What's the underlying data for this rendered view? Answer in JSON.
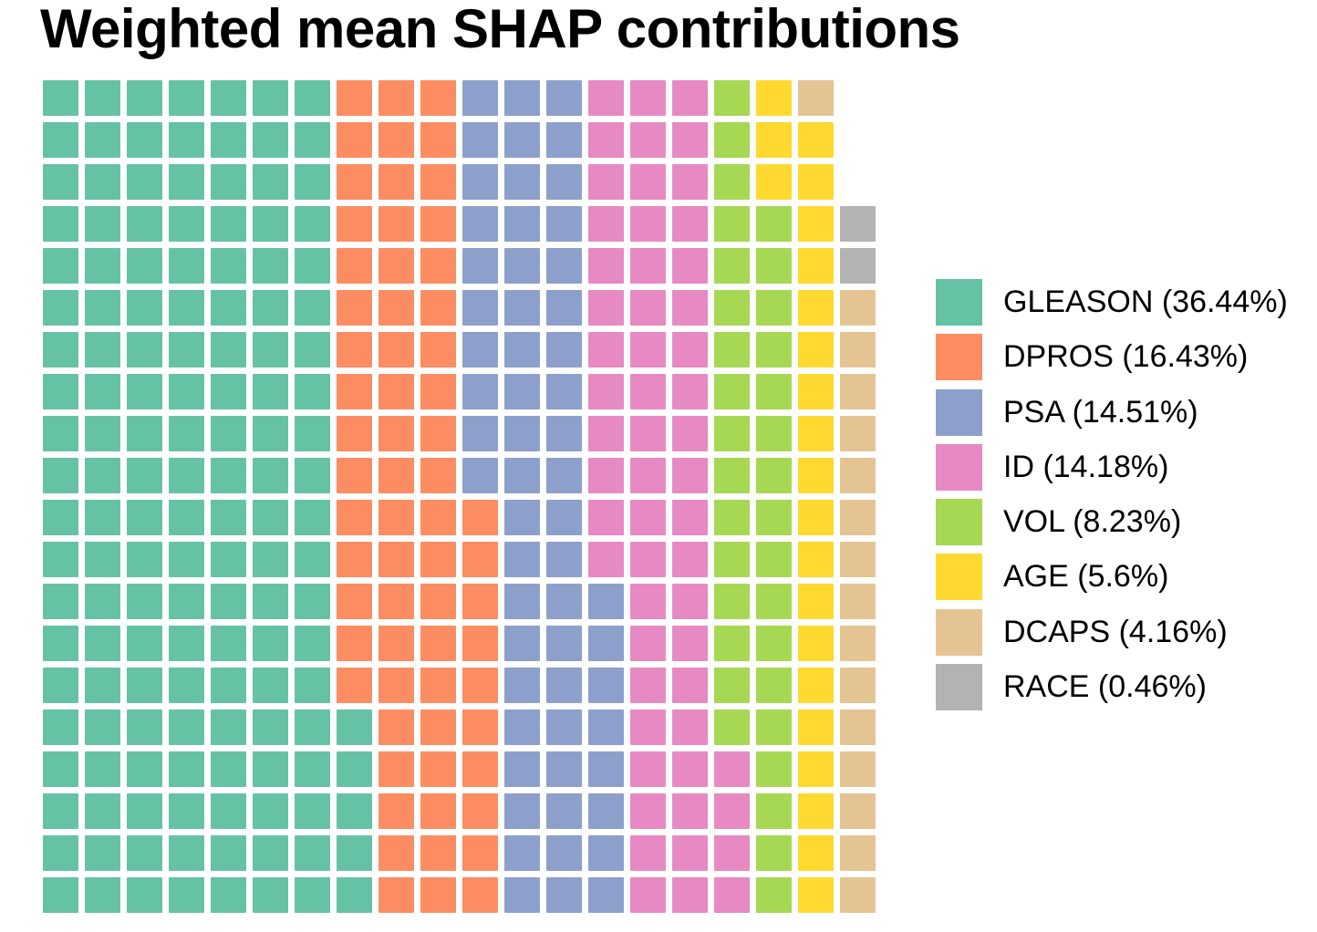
{
  "title": "Weighted mean SHAP contributions",
  "chart_data": {
    "type": "waffle",
    "title": "Weighted mean SHAP contributions",
    "grid_rows": 20,
    "grid_cols": 20,
    "cell_total": 397,
    "empty_cells": 3,
    "fill_order": "column-major, bottom-left upward",
    "legend_position": "right",
    "background_color": "#ffffff",
    "categories": [
      {
        "key": "G",
        "name": "GLEASON",
        "percent": 36.44,
        "label": "GLEASON (36.44%)",
        "cells": 145,
        "color": "#66C2A5"
      },
      {
        "key": "D",
        "name": "DPROS",
        "percent": 16.43,
        "label": "DPROS (16.43%)",
        "cells": 65,
        "color": "#FC8D62"
      },
      {
        "key": "P",
        "name": "PSA",
        "percent": 14.51,
        "label": "PSA (14.51%)",
        "cells": 58,
        "color": "#8DA0CB"
      },
      {
        "key": "I",
        "name": "ID",
        "percent": 14.18,
        "label": "ID (14.18%)",
        "cells": 56,
        "color": "#E78AC3"
      },
      {
        "key": "V",
        "name": "VOL",
        "percent": 8.23,
        "label": "VOL (8.23%)",
        "cells": 33,
        "color": "#A6D854"
      },
      {
        "key": "A",
        "name": "AGE",
        "percent": 5.6,
        "label": "AGE (5.6%)",
        "cells": 22,
        "color": "#FFD92F"
      },
      {
        "key": "C",
        "name": "DCAPS",
        "percent": 4.16,
        "label": "DCAPS (4.16%)",
        "cells": 16,
        "color": "#E5C494"
      },
      {
        "key": "R",
        "name": "RACE",
        "percent": 0.46,
        "label": "RACE (0.46%)",
        "cells": 2,
        "color": "#B3B3B3"
      }
    ],
    "grid": [
      "GGGGGGGDDDPPPIIIVAC.",
      "GGGGGGGDDDPPPIIIVAA.",
      "GGGGGGGDDDPPPIIIVAA.",
      "GGGGGGGDDDPPPIIIVVAR",
      "GGGGGGGDDDPPPIIIVVAR",
      "GGGGGGGDDDPPPIIIVVAC",
      "GGGGGGGDDDPPPIIIVVAC",
      "GGGGGGGDDDPPPIIIVVAC",
      "GGGGGGGDDDPPPIIIVVAC",
      "GGGGGGGDDDPPPIIIVVAC",
      "GGGGGGGDDDDPPIIIVVAC",
      "GGGGGGGDDDDPPIIIVVAC",
      "GGGGGGGDDDDPPPIIVVAC",
      "GGGGGGGDDDDPPPIIVVAC",
      "GGGGGGGDDDDPPPIIVVAC",
      "GGGGGGGGDDDPPPIIVVAC",
      "GGGGGGGGDDDPPPIIIVAC",
      "GGGGGGGGDDDPPPIIIVAC",
      "GGGGGGGGDDDPPPIIIVAC",
      "GGGGGGGGDDDPPPIIIVAC"
    ]
  }
}
